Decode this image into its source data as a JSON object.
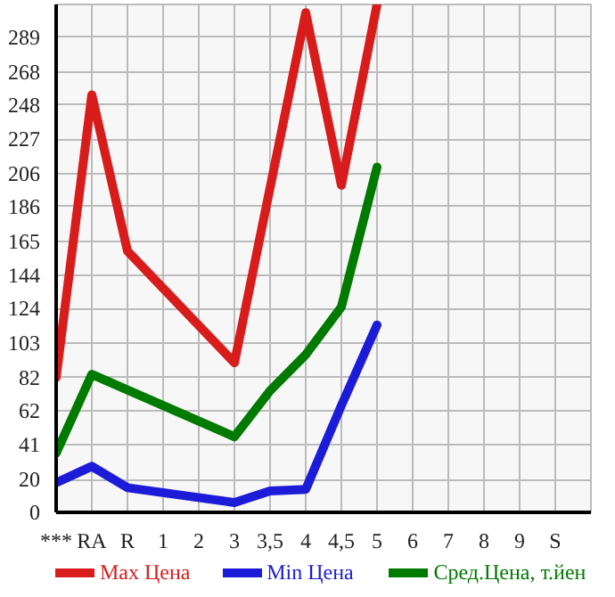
{
  "chart_data": {
    "type": "line",
    "categories": [
      "***",
      "RA",
      "R",
      "1",
      "2",
      "3",
      "3,5",
      "4",
      "4,5",
      "5",
      "6",
      "7",
      "8",
      "9",
      "S"
    ],
    "series": [
      {
        "name": "Max Цена",
        "color": "#d81c1c",
        "values": [
          82,
          254,
          159,
          null,
          null,
          91,
          null,
          304,
          199,
          309,
          null,
          null,
          null,
          null,
          null
        ]
      },
      {
        "name": "Min Цена",
        "color": "#1c1cd8",
        "values": [
          18,
          28,
          15,
          null,
          null,
          6,
          13,
          14,
          65,
          114,
          null,
          null,
          null,
          null,
          null
        ]
      },
      {
        "name": "Сред.Цена, т.йен",
        "color": "#007a00",
        "values": [
          36,
          84,
          null,
          null,
          null,
          46,
          74,
          96,
          125,
          210,
          null,
          null,
          null,
          null,
          null
        ]
      }
    ],
    "ylim": [
      0,
      309
    ],
    "yticks": [
      0,
      20,
      41,
      62,
      82,
      103,
      124,
      144,
      165,
      186,
      206,
      227,
      248,
      268,
      289
    ],
    "grid": true,
    "legend": "bottom",
    "marker": "none",
    "line_style": "solid"
  }
}
